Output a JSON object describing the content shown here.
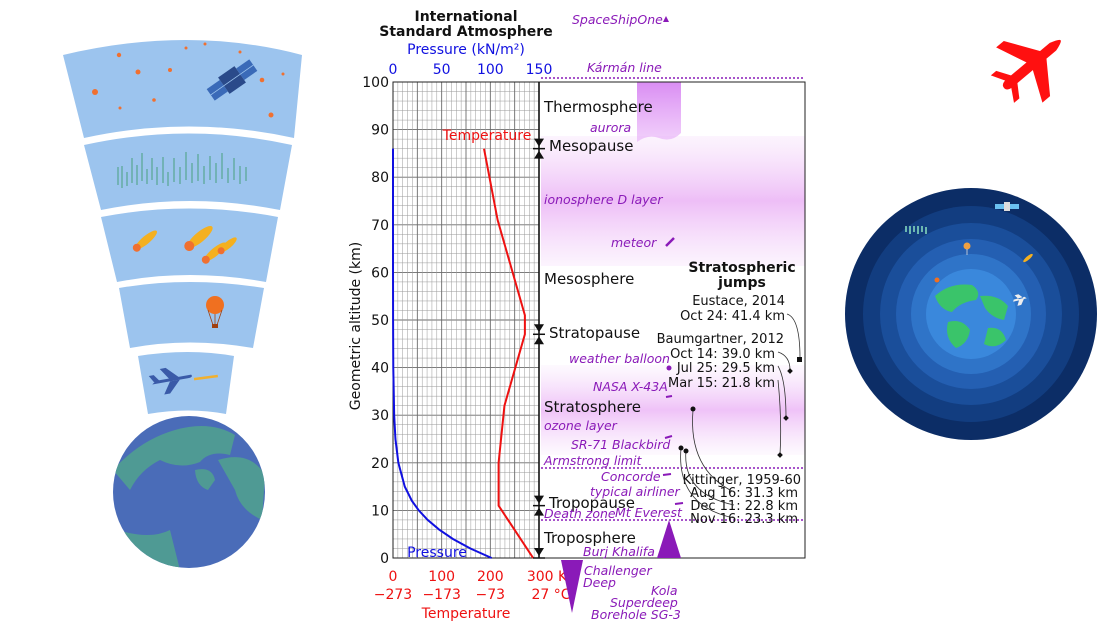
{
  "title_line1": "International",
  "title_line2": "Standard Atmosphere",
  "pressure_axis_label": "Pressure (kN/m²)",
  "pressure_ticks": [
    "0",
    "50",
    "100",
    "150"
  ],
  "temperature_axis_label": "Temperature",
  "kelvin_ticks": [
    "0",
    "100",
    "200",
    "300 K"
  ],
  "celsius_ticks": [
    "−273",
    "−173",
    "−73",
    "27 °C"
  ],
  "altitude_axis_label": "Geometric altitude (km)",
  "altitude_ticks": [
    "0",
    "10",
    "20",
    "30",
    "40",
    "50",
    "60",
    "70",
    "80",
    "90",
    "100"
  ],
  "curve_labels": {
    "temperature": "Temperature",
    "pressure": "Pressure"
  },
  "layers": {
    "thermosphere": "Thermosphere",
    "mesopause": "Mesopause",
    "mesosphere": "Mesosphere",
    "stratopause": "Stratopause",
    "stratosphere": "Stratosphere",
    "tropopause": "Tropopause",
    "troposphere": "Troposphere"
  },
  "features": {
    "spaceshipone": "SpaceShipOne",
    "karman": "Kármán line",
    "aurora": "aurora",
    "ionosphere": "ionosphere D layer",
    "meteor": "meteor",
    "weather_balloon": "weather balloon",
    "x43a": "NASA X-43A",
    "ozone": "ozone layer",
    "sr71": "SR-71 Blackbird",
    "armstrong": "Armstrong limit",
    "concorde": "Concorde",
    "airliner": "typical airliner",
    "death_zone": "Death zone",
    "everest": "Mt Everest",
    "burj": "Burj Khalifa",
    "challenger_1": "Challenger",
    "challenger_2": "Deep",
    "kola_1": "Kola",
    "kola_2": "Superdeep",
    "kola_3": "Borehole SG-3"
  },
  "jumps": {
    "heading_1": "Stratospheric",
    "heading_2": "jumps",
    "eustace_1": "Eustace, 2014",
    "eustace_2": "Oct 24: 41.4 km",
    "baum_1": "Baumgartner, 2012",
    "baum_2": "Oct 14: 39.0 km",
    "baum_3": "Jul 25: 29.5 km",
    "baum_4": "Mar 15: 21.8 km",
    "kit_1": "Kittinger, 1959-60",
    "kit_2": "Aug 16: 31.3 km",
    "kit_3": "Dec 11: 22.8 km",
    "kit_4": "Nov 16: 23.3 km"
  },
  "colors": {
    "pressure": "#1010e0",
    "temperature": "#ee1111",
    "feature": "#8a1ab8",
    "sky": "#9cc4ee",
    "earth_ocean": "#4a6cb8",
    "earth_land": "#4f9a94",
    "airplane": "#ff1010"
  },
  "icons": {
    "airplane": "airplane-icon",
    "globe": "layered-globe-icon",
    "satellite": "satellite-icon",
    "balloon": "balloon-icon",
    "meteor": "meteor-icon",
    "plane_small": "small-plane-icon"
  },
  "chart_data": {
    "type": "line",
    "xlabel": "Pressure (kN/m²) / Temperature",
    "ylabel": "Geometric altitude (km)",
    "ylim": [
      0,
      100
    ],
    "xlim_pressure": [
      0,
      150
    ],
    "xlim_temperature_K": [
      0,
      300
    ],
    "series": [
      {
        "name": "Temperature",
        "altitude": [
          0,
          11,
          20,
          32,
          47,
          51,
          71,
          86
        ],
        "values": [
          288,
          217,
          217,
          229,
          271,
          271,
          215,
          187
        ]
      },
      {
        "name": "Pressure",
        "altitude": [
          0,
          2,
          4,
          6,
          8,
          10,
          12,
          15,
          20,
          25,
          30,
          40,
          50,
          60,
          70,
          86
        ],
        "values": [
          101.3,
          79.5,
          61.6,
          47.2,
          35.6,
          26.5,
          19.4,
          12.1,
          5.5,
          2.5,
          1.2,
          0.29,
          0.08,
          0.02,
          0.005,
          0.0004
        ]
      }
    ],
    "layer_boundaries": {
      "tropopause": 11,
      "stratopause": 47,
      "mesopause": 86
    },
    "jumps": [
      {
        "name": "Eustace, 2014",
        "date": "Oct 24",
        "altitude": 41.4
      },
      {
        "name": "Baumgartner, 2012",
        "date": "Oct 14",
        "altitude": 39.0
      },
      {
        "name": "Baumgartner, 2012",
        "date": "Jul 25",
        "altitude": 29.5
      },
      {
        "name": "Baumgartner, 2012",
        "date": "Mar 15",
        "altitude": 21.8
      },
      {
        "name": "Kittinger, 1959-60",
        "date": "Aug 16",
        "altitude": 31.3
      },
      {
        "name": "Kittinger, 1959-60",
        "date": "Dec 11",
        "altitude": 22.8
      },
      {
        "name": "Kittinger, 1959-60",
        "date": "Nov 16",
        "altitude": 23.3
      }
    ]
  }
}
